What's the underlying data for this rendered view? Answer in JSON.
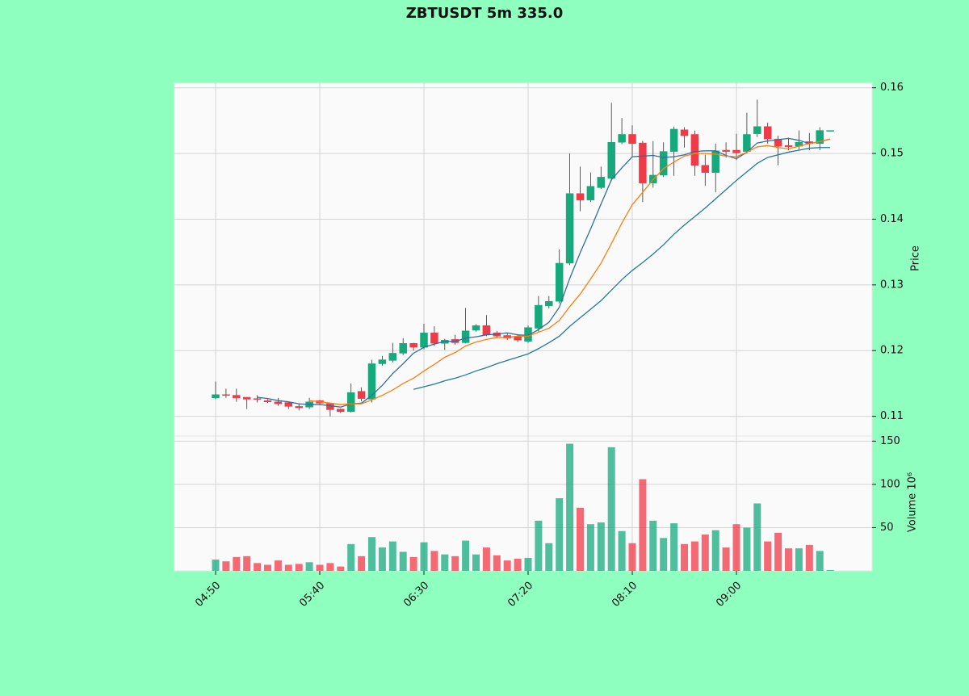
{
  "chart_data": {
    "type": "candlestick",
    "title": "ZBTUSDT 5m 335.0",
    "ylabel": "Price",
    "y2label": "Volume  10⁶",
    "grid": true,
    "up_color": "#16a97c",
    "down_color": "#f03a47",
    "categories": [
      "04:50",
      null,
      null,
      null,
      null,
      null,
      null,
      null,
      null,
      null,
      "05:40",
      null,
      null,
      null,
      null,
      null,
      null,
      null,
      null,
      null,
      "06:30",
      null,
      null,
      null,
      null,
      null,
      null,
      null,
      null,
      null,
      "07:20",
      null,
      null,
      null,
      null,
      null,
      null,
      null,
      null,
      null,
      "08:10",
      null,
      null,
      null,
      null,
      null,
      null,
      null,
      null,
      null,
      "09:00",
      null,
      null,
      null,
      null,
      null,
      null,
      null,
      null,
      null
    ],
    "open": [
      0.1128,
      0.1133,
      0.1132,
      0.1129,
      0.1127,
      0.1124,
      0.1122,
      0.1121,
      0.1115,
      0.1114,
      0.1124,
      0.112,
      0.1111,
      0.1107,
      0.1138,
      0.1126,
      0.118,
      0.1185,
      0.1196,
      0.1211,
      0.1205,
      0.1227,
      0.1211,
      0.1217,
      0.1212,
      0.1231,
      0.1238,
      0.1227,
      0.1223,
      0.1221,
      0.1214,
      0.1234,
      0.1268,
      0.1275,
      0.1333,
      0.1439,
      0.1429,
      0.1448,
      0.1462,
      0.1517,
      0.1529,
      0.1516,
      0.1455,
      0.1467,
      0.1503,
      0.1536,
      0.1529,
      0.1482,
      0.1471,
      0.1505,
      0.1505,
      0.1503,
      0.153,
      0.1541,
      0.1522,
      0.1512,
      0.1511,
      0.1518,
      0.1515,
      0.1535
    ],
    "high": [
      0.1153,
      0.1142,
      0.1142,
      0.1129,
      0.1132,
      0.1126,
      0.1128,
      0.1123,
      0.1119,
      0.1128,
      0.1125,
      0.1121,
      0.1112,
      0.115,
      0.1144,
      0.1186,
      0.1192,
      0.1212,
      0.1219,
      0.1212,
      0.1241,
      0.1237,
      0.1218,
      0.1224,
      0.1265,
      0.124,
      0.1254,
      0.123,
      0.1227,
      0.1225,
      0.1238,
      0.1283,
      0.1283,
      0.1354,
      0.15,
      0.148,
      0.1471,
      0.148,
      0.1577,
      0.1554,
      0.1543,
      0.1519,
      0.1519,
      0.1517,
      0.1541,
      0.154,
      0.1535,
      0.1498,
      0.1515,
      0.1517,
      0.153,
      0.1562,
      0.1582,
      0.1547,
      0.1527,
      0.1524,
      0.1535,
      0.1531,
      0.154,
      0.1535
    ],
    "low": [
      0.1126,
      0.1128,
      0.1122,
      0.1111,
      0.1121,
      0.112,
      0.1116,
      0.1111,
      0.1109,
      0.1111,
      0.1117,
      0.11,
      0.1105,
      0.1106,
      0.1123,
      0.1121,
      0.1177,
      0.1182,
      0.1193,
      0.12,
      0.1202,
      0.1207,
      0.1201,
      0.1209,
      0.1211,
      0.1229,
      0.1222,
      0.1219,
      0.1216,
      0.1213,
      0.1212,
      0.1229,
      0.1264,
      0.1272,
      0.133,
      0.1412,
      0.1426,
      0.1446,
      0.1458,
      0.1514,
      0.1495,
      0.1426,
      0.1448,
      0.1464,
      0.1466,
      0.1509,
      0.1466,
      0.1451,
      0.1441,
      0.1494,
      0.149,
      0.15,
      0.1525,
      0.1515,
      0.1482,
      0.1505,
      0.1506,
      0.1505,
      0.1505,
      0.1535
    ],
    "close": [
      0.1133,
      0.1132,
      0.1128,
      0.1126,
      0.1126,
      0.1122,
      0.1119,
      0.1115,
      0.1113,
      0.1122,
      0.112,
      0.111,
      0.1107,
      0.1136,
      0.1127,
      0.118,
      0.1186,
      0.1196,
      0.1211,
      0.1205,
      0.1227,
      0.1211,
      0.1216,
      0.1212,
      0.123,
      0.1238,
      0.1224,
      0.1222,
      0.1219,
      0.1216,
      0.1235,
      0.1269,
      0.1275,
      0.1333,
      0.1439,
      0.1429,
      0.145,
      0.1464,
      0.1517,
      0.1529,
      0.1515,
      0.1455,
      0.1467,
      0.1503,
      0.1537,
      0.1527,
      0.1482,
      0.1471,
      0.1504,
      0.1503,
      0.1501,
      0.1529,
      0.1541,
      0.1522,
      0.1511,
      0.151,
      0.1517,
      0.1515,
      0.1535,
      0.1535
    ],
    "volume": [
      13,
      11,
      16,
      17,
      9,
      7,
      12,
      7,
      8,
      10,
      7,
      9,
      5,
      31,
      17,
      39,
      27,
      34,
      22,
      16,
      33,
      23,
      19,
      17,
      35,
      19,
      27,
      18,
      12,
      14,
      15,
      58,
      32,
      84,
      147,
      73,
      54,
      56,
      143,
      46,
      32,
      106,
      58,
      38,
      55,
      31,
      34,
      42,
      47,
      27,
      54,
      50,
      78,
      34,
      44,
      26,
      26,
      30,
      23,
      1
    ],
    "series": [
      {
        "color": "#2f6ea3",
        "values": [
          null,
          null,
          null,
          null,
          0.1129,
          0.1127,
          0.1124,
          0.1122,
          0.1119,
          0.1118,
          0.1118,
          0.1116,
          0.1114,
          0.1119,
          0.112,
          0.1132,
          0.1147,
          0.1165,
          0.118,
          0.1196,
          0.1205,
          0.121,
          0.1214,
          0.1214,
          0.1219,
          0.1221,
          0.1224,
          0.1225,
          0.1227,
          0.1224,
          0.1223,
          0.1232,
          0.1243,
          0.1266,
          0.131,
          0.1349,
          0.1385,
          0.1423,
          0.146,
          0.1478,
          0.1495,
          0.1496,
          0.1497,
          0.1494,
          0.1495,
          0.1498,
          0.1503,
          0.1504,
          0.1504,
          0.1497,
          0.1492,
          0.1502,
          0.1516,
          0.1519,
          0.1521,
          0.1523,
          0.152,
          0.1515,
          0.1518,
          0.1522
        ]
      },
      {
        "color": "#ff7f0e",
        "values": [
          null,
          null,
          null,
          null,
          null,
          null,
          null,
          null,
          null,
          0.1124,
          0.1122,
          0.112,
          0.1118,
          0.1119,
          0.1119,
          0.1125,
          0.1132,
          0.114,
          0.115,
          0.1158,
          0.1169,
          0.1179,
          0.119,
          0.1197,
          0.1207,
          0.1213,
          0.1217,
          0.122,
          0.122,
          0.1222,
          0.1222,
          0.1228,
          0.1234,
          0.1246,
          0.1267,
          0.1286,
          0.1309,
          0.1333,
          0.1363,
          0.1394,
          0.1422,
          0.1441,
          0.146,
          0.1477,
          0.1487,
          0.1496,
          0.15,
          0.15,
          0.1499,
          0.1496,
          0.1495,
          0.1502,
          0.151,
          0.1512,
          0.1509,
          0.1507,
          0.1511,
          0.1515,
          0.1518,
          0.1522
        ]
      },
      {
        "color": "#1f7a9c",
        "values": [
          null,
          null,
          null,
          null,
          null,
          null,
          null,
          null,
          null,
          null,
          null,
          null,
          null,
          null,
          null,
          null,
          null,
          null,
          null,
          0.1141,
          0.1145,
          0.1149,
          0.1154,
          0.1158,
          0.1163,
          0.1169,
          0.1174,
          0.118,
          0.1185,
          0.119,
          0.1195,
          0.1203,
          0.1212,
          0.1222,
          0.1237,
          0.125,
          0.1263,
          0.1276,
          0.1292,
          0.1308,
          0.1322,
          0.1334,
          0.1347,
          0.1361,
          0.1377,
          0.1391,
          0.1404,
          0.1417,
          0.1431,
          0.1445,
          0.1459,
          0.1472,
          0.1485,
          0.1494,
          0.1498,
          0.1502,
          0.1505,
          0.1508,
          0.1509,
          0.1509
        ]
      }
    ],
    "ylim": [
      0.107,
      0.1607
    ],
    "yticks": [
      0.11,
      0.12,
      0.13,
      0.14,
      0.15,
      0.16
    ],
    "y2lim": [
      0,
      155
    ],
    "y2ticks": [
      50,
      100,
      150
    ]
  }
}
